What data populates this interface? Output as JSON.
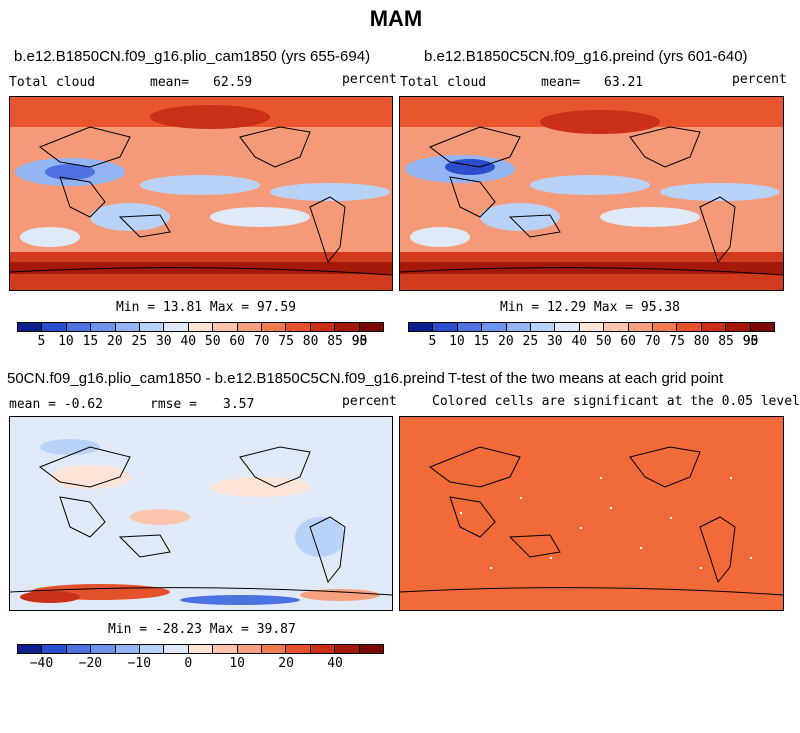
{
  "title": "MAM",
  "panels": [
    {
      "title": "b.e12.B1850CN.f09_g16.plio_cam1850 (yrs 655-694)",
      "left_label": "Total cloud",
      "mean_label": "mean=",
      "mean_value": "62.59",
      "units": "percent",
      "stats": "Min =  13.81 Max =  97.59"
    },
    {
      "title": "b.e12.B1850C5CN.f09_g16.preind (yrs 601-640)",
      "left_label": "Total cloud",
      "mean_label": "mean=",
      "mean_value": "63.21",
      "units": "percent",
      "stats": "Min =  12.29 Max =  95.38"
    },
    {
      "title": "50CN.f09_g16.plio_cam1850 - b.e12.B1850C5CN.f09_g16.preind",
      "left_label": "mean =  -0.62",
      "mean_label": "rmse =",
      "mean_value": "3.57",
      "units": "percent",
      "stats": "Min = -28.23 Max =  39.87"
    },
    {
      "title": "T-test of the two means at each grid point",
      "subtitle": "Colored cells are significant at the 0.05 level",
      "fill_color": "#f26a38"
    }
  ],
  "colorbar_abs": {
    "colors": [
      "#0b1f8e",
      "#2b4ecc",
      "#4e72e0",
      "#6c94ec",
      "#93b5f4",
      "#b9d2f7",
      "#dfe9f7",
      "#fde4d6",
      "#fbc5ad",
      "#f7a07e",
      "#f27a52",
      "#e4522c",
      "#c93017",
      "#a31808",
      "#7d0a04"
    ],
    "labels": [
      "5",
      "10",
      "15",
      "20",
      "25",
      "30",
      "40",
      "50",
      "60",
      "70",
      "75",
      "80",
      "85",
      "90",
      "95"
    ]
  },
  "colorbar_diff": {
    "colors": [
      "#0b1f8e",
      "#2b4ecc",
      "#4e72e0",
      "#6c94ec",
      "#93b5f4",
      "#b9d2f7",
      "#dfe9f7",
      "#fde4d6",
      "#fbc5ad",
      "#f7a07e",
      "#f27a52",
      "#e4522c",
      "#c93017",
      "#a31808",
      "#7d0a04"
    ],
    "labels": [
      "−40",
      "−20",
      "−10",
      "0",
      "10",
      "20",
      "40"
    ]
  }
}
